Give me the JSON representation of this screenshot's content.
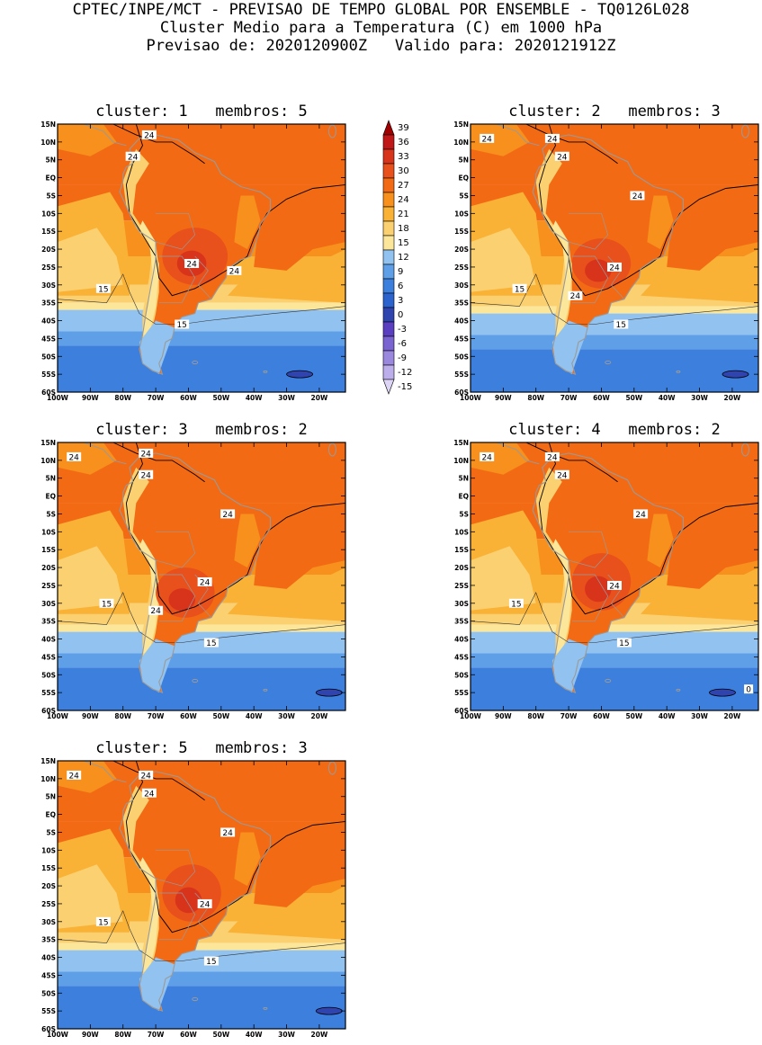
{
  "header": {
    "line1": "CPTEC/INPE/MCT - PREVISAO DE TEMPO GLOBAL POR ENSEMBLE - TQ0126L028",
    "line2": "Cluster Medio para a Temperatura (C) em 1000 hPa",
    "line3": "Previsao de: 2020120900Z   Valido para: 2020121912Z"
  },
  "axes": {
    "lat_labels": [
      "15N",
      "10N",
      "5N",
      "EQ",
      "5S",
      "10S",
      "15S",
      "20S",
      "25S",
      "30S",
      "35S",
      "40S",
      "45S",
      "50S",
      "55S",
      "60S"
    ],
    "lon_labels": [
      "100W",
      "90W",
      "80W",
      "70W",
      "60W",
      "50W",
      "40W",
      "30W",
      "20W"
    ]
  },
  "colorbar": {
    "labels": [
      "39",
      "36",
      "33",
      "30",
      "27",
      "24",
      "21",
      "18",
      "15",
      "12",
      "9",
      "6",
      "3",
      "0",
      "-3",
      "-6",
      "-9",
      "-12",
      "-15"
    ],
    "colors": [
      "#a00000",
      "#c01818",
      "#d8341c",
      "#e8501c",
      "#f36a14",
      "#f7901c",
      "#f9b136",
      "#fbd070",
      "#fbe69a",
      "#92c3f0",
      "#5f9fe8",
      "#3d7fdc",
      "#2c63cc",
      "#3044b0",
      "#5a40c0",
      "#7a64d2",
      "#9a88de",
      "#bcaeea",
      "#ddd4f6"
    ]
  },
  "panels": [
    {
      "title": "cluster: 1   membros: 5",
      "contour_labels": [
        "24",
        "24",
        "24",
        "24",
        "15",
        "15"
      ]
    },
    {
      "title": "cluster: 2   membros: 3",
      "contour_labels": [
        "24",
        "24",
        "24",
        "24",
        "24",
        "24",
        "15",
        "15"
      ]
    },
    {
      "title": "cluster: 3   membros: 2",
      "contour_labels": [
        "24",
        "24",
        "24",
        "24",
        "24",
        "24",
        "15",
        "15"
      ]
    },
    {
      "title": "cluster: 4   membros: 2",
      "contour_labels": [
        "24",
        "24",
        "24",
        "24",
        "24",
        "15",
        "15",
        "0"
      ]
    },
    {
      "title": "cluster: 5   membros: 3",
      "contour_labels": [
        "24",
        "24",
        "24",
        "24",
        "24",
        "15",
        "15"
      ]
    }
  ]
}
